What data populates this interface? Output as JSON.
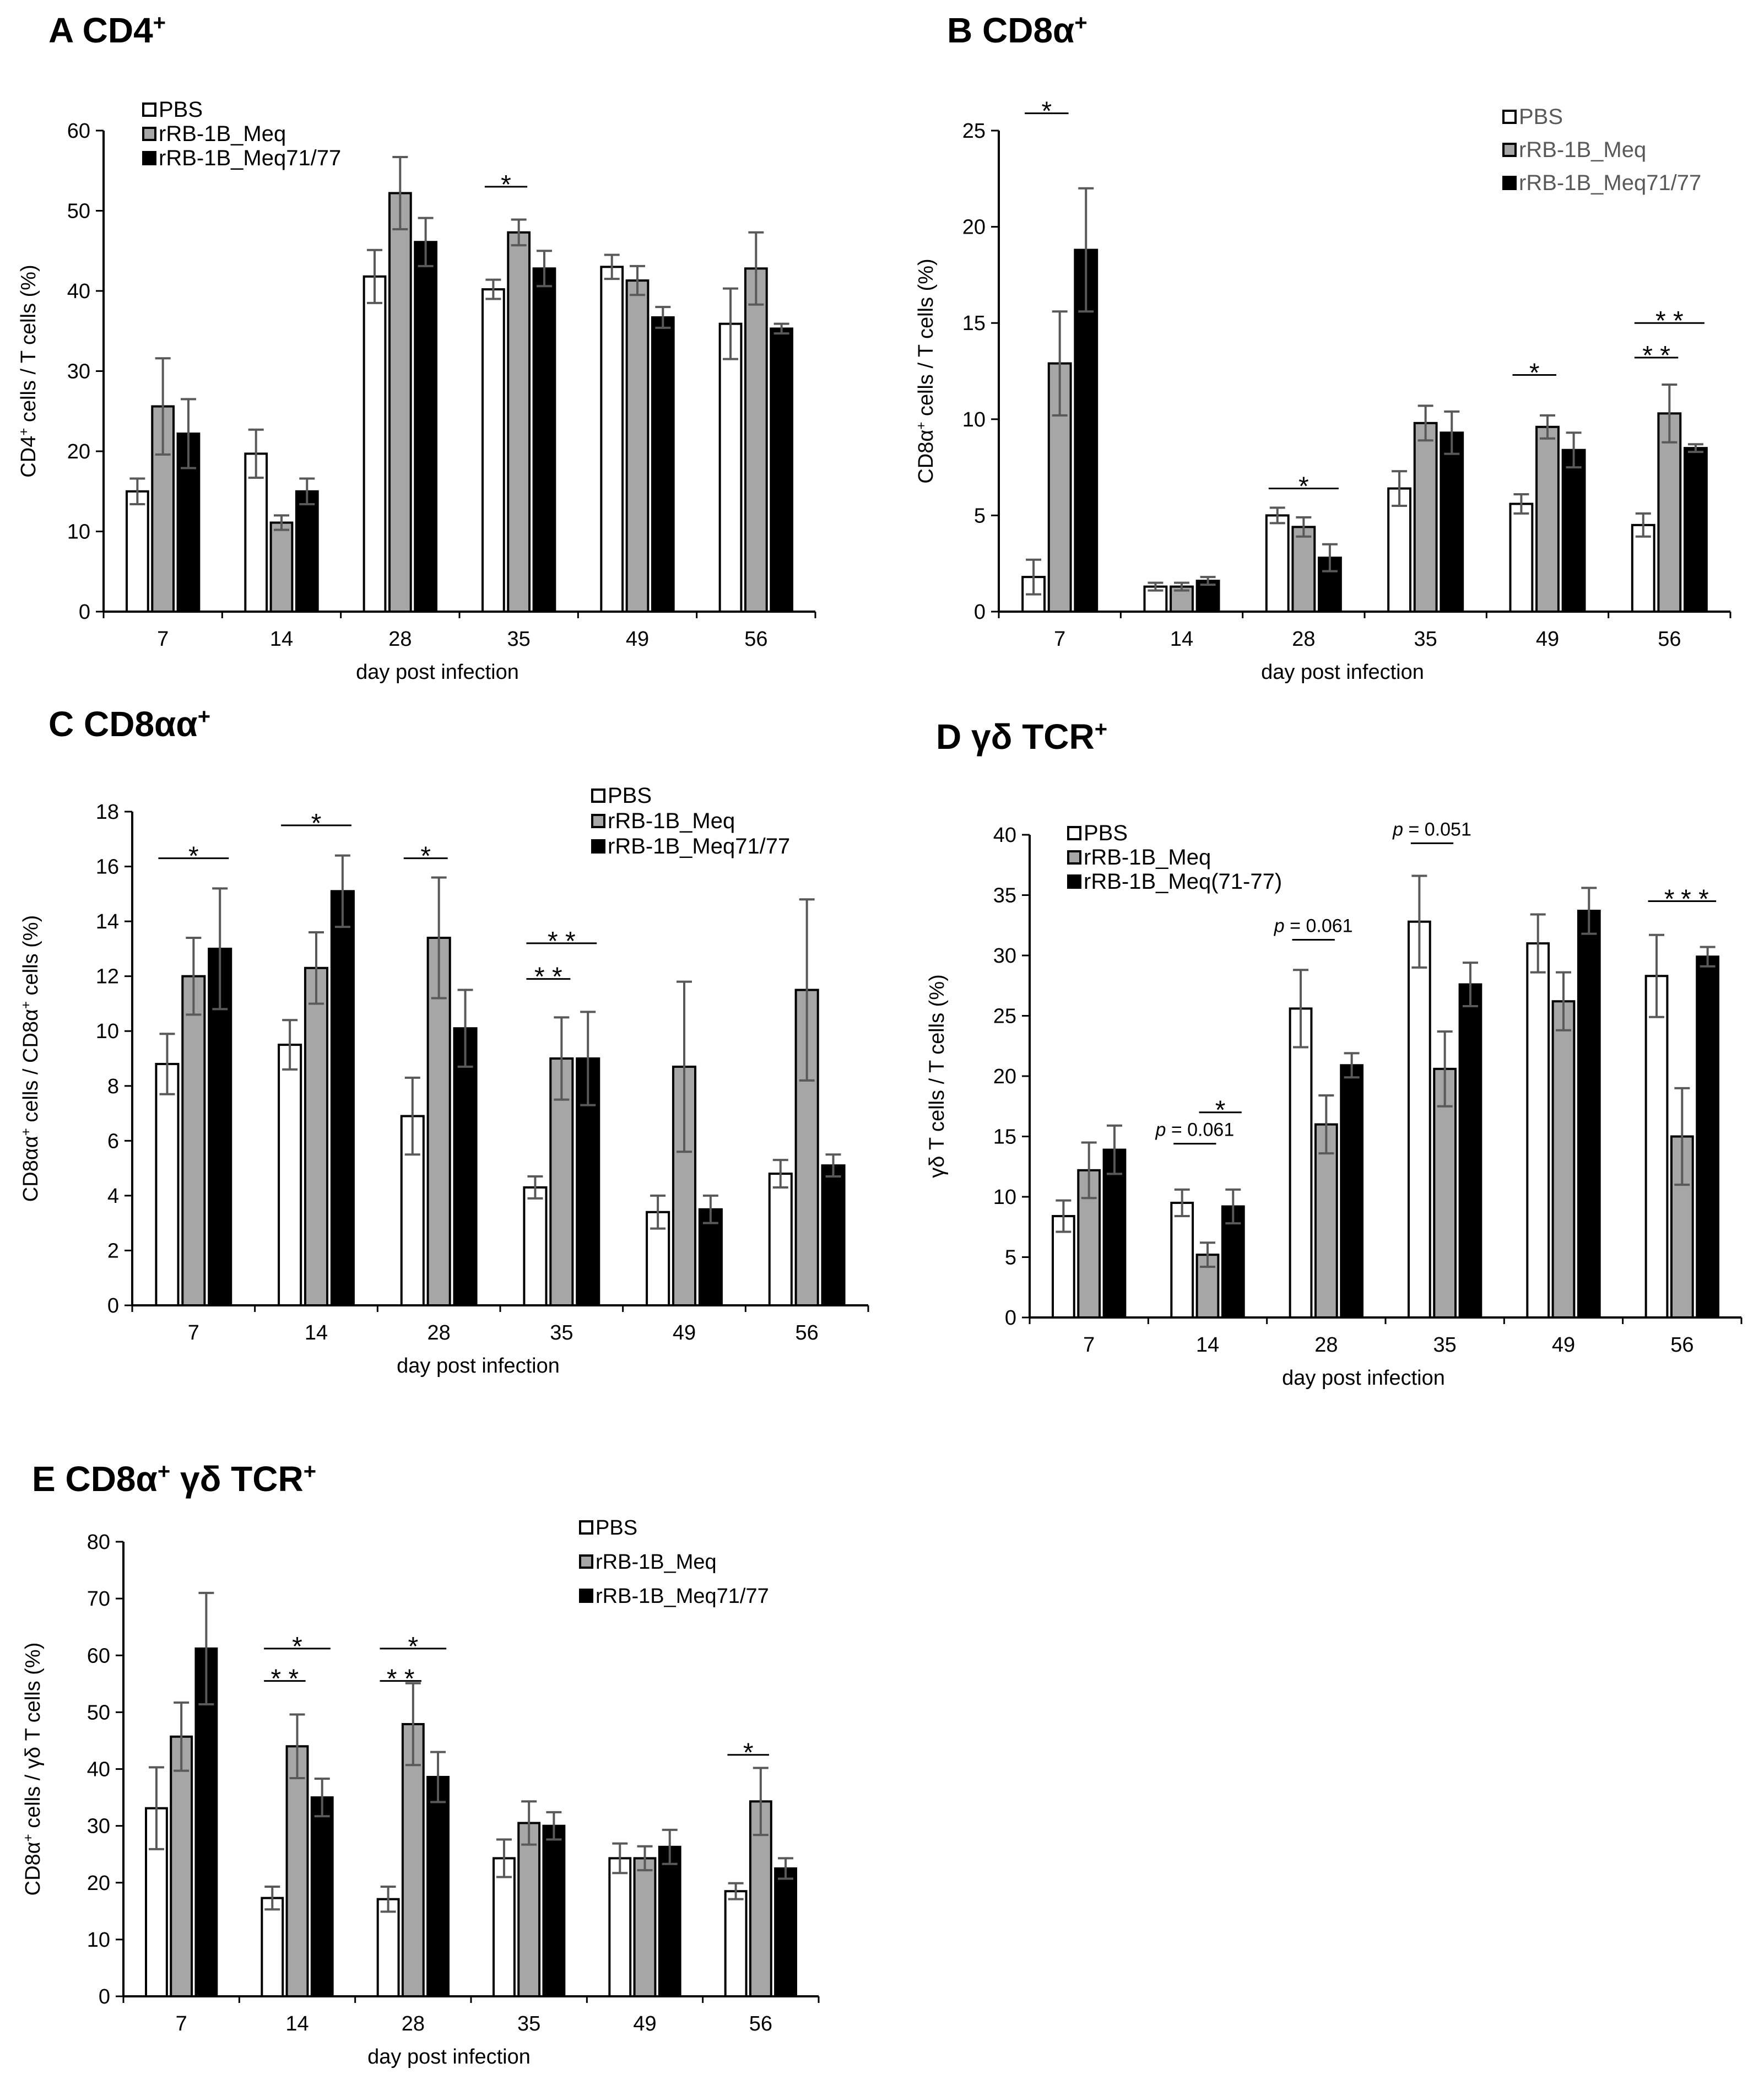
{
  "figure": {
    "panels": [
      {
        "letter": "A",
        "name": "CD4",
        "sup": "+"
      },
      {
        "letter": "B",
        "name": "CD8α",
        "sup": "+"
      },
      {
        "letter": "C",
        "name": "CD8αα",
        "sup": "+"
      },
      {
        "letter": "D",
        "name": "γδ TCR",
        "sup": "+"
      },
      {
        "letter": "E",
        "name": "CD8α",
        "sup": "+",
        "name2": " γδ TCR",
        "sup2": "+"
      }
    ]
  },
  "colors": {
    "PBS": "#ffffff",
    "rRB-1B_Meq": "#a6a6a6",
    "rRB-1B_Meq71/77": "#000000",
    "errorbar": "#595959"
  },
  "chart_data": [
    {
      "id": "A",
      "type": "bar",
      "title": "A CD4+",
      "xlabel": "day post infection",
      "ylabel": "CD4+ cells / T cells (%)",
      "ylim": [
        0,
        60
      ],
      "yticks": [
        0,
        10,
        20,
        30,
        40,
        50,
        60
      ],
      "categories": [
        "7",
        "14",
        "28",
        "35",
        "49",
        "56"
      ],
      "legend": [
        "PBS",
        "rRB-1B_Meq",
        "rRB-1B_Meq71/77"
      ],
      "series": [
        {
          "name": "PBS",
          "values": [
            15,
            19.7,
            41.8,
            40.2,
            43,
            35.9
          ],
          "errors": [
            1.6,
            3,
            3.3,
            1.2,
            1.5,
            4.4
          ]
        },
        {
          "name": "rRB-1B_Meq",
          "values": [
            25.6,
            11.1,
            52.2,
            47.3,
            41.3,
            42.8
          ],
          "errors": [
            6,
            0.9,
            4.5,
            1.6,
            1.8,
            4.5
          ]
        },
        {
          "name": "rRB-1B_Meq71/77",
          "values": [
            22.2,
            15,
            46.1,
            42.8,
            36.7,
            35.3
          ],
          "errors": [
            4.3,
            1.6,
            3,
            2.2,
            1.3,
            0.6
          ]
        }
      ],
      "annotations": [
        {
          "text": "*",
          "category": 3,
          "from": 0,
          "to": 1,
          "y": 53
        }
      ]
    },
    {
      "id": "B",
      "type": "bar",
      "title": "B CD8α+",
      "xlabel": "day post infection",
      "ylabel": "CD8α+ cells / T cells (%)",
      "ylim": [
        0,
        25
      ],
      "yticks": [
        0,
        5,
        10,
        15,
        20,
        25
      ],
      "categories": [
        "7",
        "14",
        "28",
        "35",
        "49",
        "56"
      ],
      "legend": [
        "PBS",
        "rRB-1B_Meq",
        "rRB-1B_Meq71/77"
      ],
      "series": [
        {
          "name": "PBS",
          "values": [
            1.8,
            1.3,
            5,
            6.4,
            5.6,
            4.5
          ],
          "errors": [
            0.9,
            0.2,
            0.4,
            0.9,
            0.5,
            0.6
          ]
        },
        {
          "name": "rRB-1B_Meq",
          "values": [
            12.9,
            1.3,
            4.4,
            9.8,
            9.6,
            10.3
          ],
          "errors": [
            2.7,
            0.2,
            0.5,
            0.9,
            0.6,
            1.5
          ]
        },
        {
          "name": "rRB-1B_Meq71/77",
          "values": [
            18.8,
            1.6,
            2.8,
            9.3,
            8.4,
            8.5
          ],
          "errors": [
            3.2,
            0.2,
            0.7,
            1.1,
            0.9,
            0.2
          ]
        }
      ],
      "annotations": [
        {
          "text": "*",
          "category": 0,
          "from": 0,
          "to": 1,
          "y": 25.9
        },
        {
          "text": "*",
          "category": 2,
          "from": 0,
          "to": 2,
          "y": 6.4
        },
        {
          "text": "*",
          "category": 4,
          "from": 0,
          "to": 1,
          "y": 12.3
        },
        {
          "text": "* *",
          "category": 5,
          "from": 0,
          "to": 1,
          "y": 13.2
        },
        {
          "text": "* *",
          "category": 5,
          "from": 0,
          "to": 2,
          "y": 15
        }
      ]
    },
    {
      "id": "C",
      "type": "bar",
      "title": "C CD8αα+",
      "xlabel": "day post infection",
      "ylabel": "CD8αα+ cells / CD8α+ cells (%)",
      "ylim": [
        0,
        18
      ],
      "yticks": [
        0,
        2,
        4,
        6,
        8,
        10,
        12,
        14,
        16,
        18
      ],
      "categories": [
        "7",
        "14",
        "28",
        "35",
        "49",
        "56"
      ],
      "legend": [
        "PBS",
        "rRB-1B_Meq",
        "rRB-1B_Meq71/77"
      ],
      "series": [
        {
          "name": "PBS",
          "values": [
            8.8,
            9.5,
            6.9,
            4.3,
            3.4,
            4.8
          ],
          "errors": [
            1.1,
            0.9,
            1.4,
            0.4,
            0.6,
            0.5
          ]
        },
        {
          "name": "rRB-1B_Meq",
          "values": [
            12,
            12.3,
            13.4,
            9,
            8.7,
            11.5
          ],
          "errors": [
            1.4,
            1.3,
            2.2,
            1.5,
            3.1,
            3.3
          ]
        },
        {
          "name": "rRB-1B_Meq71/77",
          "values": [
            13,
            15.1,
            10.1,
            9,
            3.5,
            5.1
          ],
          "errors": [
            2.2,
            1.3,
            1.4,
            1.7,
            0.5,
            0.4
          ]
        }
      ],
      "annotations": [
        {
          "text": "*",
          "category": 0,
          "from": 0,
          "to": 2,
          "y": 16.3
        },
        {
          "text": "*",
          "category": 1,
          "from": 0,
          "to": 2,
          "y": 17.5
        },
        {
          "text": "*",
          "category": 2,
          "from": 0,
          "to": 1,
          "y": 16.3
        },
        {
          "text": "* *",
          "category": 3,
          "from": 0,
          "to": 1,
          "y": 11.9
        },
        {
          "text": "* *",
          "category": 3,
          "from": 0,
          "to": 2,
          "y": 13.2
        }
      ]
    },
    {
      "id": "D",
      "type": "bar",
      "title": "D γδ TCR+",
      "xlabel": "day post infection",
      "ylabel": "γδ T cells / T cells (%)",
      "ylim": [
        0,
        40
      ],
      "yticks": [
        0,
        5,
        10,
        15,
        20,
        25,
        30,
        35,
        40
      ],
      "categories": [
        "7",
        "14",
        "28",
        "35",
        "49",
        "56"
      ],
      "legend": [
        "PBS",
        "rRB-1B_Meq",
        "rRB-1B_Meq(71-77)"
      ],
      "series": [
        {
          "name": "PBS",
          "values": [
            8.4,
            9.5,
            25.6,
            32.8,
            31,
            28.3
          ],
          "errors": [
            1.3,
            1.1,
            3.2,
            3.8,
            2.4,
            3.4
          ]
        },
        {
          "name": "rRB-1B_Meq",
          "values": [
            12.2,
            5.2,
            16,
            20.6,
            26.2,
            15
          ],
          "errors": [
            2.3,
            1,
            2.4,
            3.1,
            2.4,
            4
          ]
        },
        {
          "name": "rRB-1B_Meq(71-77)",
          "values": [
            13.9,
            9.2,
            20.9,
            27.6,
            33.7,
            29.9
          ],
          "errors": [
            2,
            1.4,
            1,
            1.8,
            1.9,
            0.8
          ]
        }
      ],
      "annotations": [
        {
          "text": "p = 0.061",
          "category": 1,
          "from": 0,
          "to": 1,
          "y": 14.4
        },
        {
          "text": "*",
          "category": 1,
          "from": 1,
          "to": 2,
          "y": 17
        },
        {
          "text": "p = 0.061",
          "category": 2,
          "from": 0,
          "to": 1,
          "y": 31.3
        },
        {
          "text": "p = 0.051",
          "category": 3,
          "from": 0,
          "to": 1,
          "y": 39.3
        },
        {
          "text": "*",
          "category": 5,
          "from": 0,
          "to": 1,
          "y": 34.5
        },
        {
          "text": "* *",
          "category": 5,
          "from": 1,
          "to": 2,
          "y": 34.5
        }
      ]
    },
    {
      "id": "E",
      "type": "bar",
      "title": "E CD8α+ γδ TCR+",
      "xlabel": "day post infection",
      "ylabel": "CD8α+ cells / γδ T cells (%)",
      "ylim": [
        0,
        80
      ],
      "yticks": [
        0,
        10,
        20,
        30,
        40,
        50,
        60,
        70,
        80
      ],
      "categories": [
        "7",
        "14",
        "28",
        "35",
        "49",
        "56"
      ],
      "legend": [
        "PBS",
        "rRB-1B_Meq",
        "rRB-1B_Meq71/77"
      ],
      "series": [
        {
          "name": "PBS",
          "values": [
            33.1,
            17.3,
            17.1,
            24.3,
            24.3,
            18.5
          ],
          "errors": [
            7.2,
            2,
            2.2,
            3.3,
            2.6,
            1.4
          ]
        },
        {
          "name": "rRB-1B_Meq",
          "values": [
            45.7,
            44,
            47.9,
            30.5,
            24.3,
            34.3
          ],
          "errors": [
            6,
            5.6,
            7.2,
            3.8,
            2.1,
            5.9
          ]
        },
        {
          "name": "rRB-1B_Meq71/77",
          "values": [
            61.2,
            35,
            38.6,
            30,
            26.3,
            22.5
          ],
          "errors": [
            9.8,
            3.3,
            4.4,
            2.4,
            3,
            1.8
          ]
        }
      ],
      "annotations": [
        {
          "text": "* *",
          "category": 1,
          "from": 0,
          "to": 1,
          "y": 55.5
        },
        {
          "text": "*",
          "category": 1,
          "from": 0,
          "to": 2,
          "y": 61.2
        },
        {
          "text": "* *",
          "category": 2,
          "from": 0,
          "to": 1,
          "y": 55.5
        },
        {
          "text": "*",
          "category": 2,
          "from": 0,
          "to": 2,
          "y": 61.2
        },
        {
          "text": "*",
          "category": 5,
          "from": 0,
          "to": 1,
          "y": 42.5
        }
      ]
    }
  ]
}
